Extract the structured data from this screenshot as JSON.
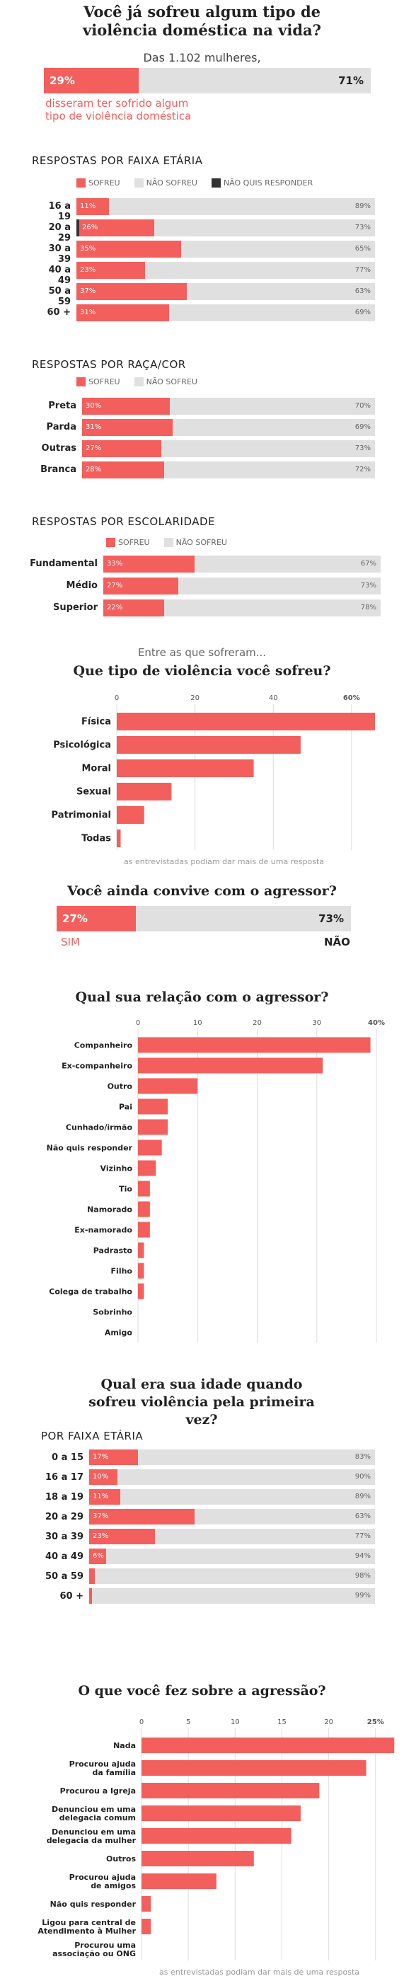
{
  "header": {
    "title_line1": "Você já sofreu algum tipo de",
    "title_line2": "violência doméstica na vida?",
    "base": "Das 1.102 mulheres,",
    "yes_pct": "29%",
    "no_pct": "71%",
    "yes_value": 29,
    "caption_line1": "disseram ter sofrido algum",
    "caption_line2": "tipo de violência doméstica"
  },
  "legend": {
    "sofreu": "SOFREU",
    "nao_sofreu": "NÃO SOFREU",
    "nao_quis": "NÃO QUIS RESPONDER"
  },
  "colors": {
    "red": "#f25f5c",
    "gray": "#e0e0e0",
    "dark": "#333333"
  },
  "chart_data": [
    {
      "type": "bar",
      "title": "RESPOSTAS POR FAIXA ETÁRIA",
      "categories": [
        "16 a 19",
        "20 a 29",
        "30 a 39",
        "40 a 49",
        "50 a 59",
        "60 +"
      ],
      "series": [
        {
          "name": "SOFREU",
          "values": [
            11,
            26,
            35,
            23,
            37,
            31
          ],
          "labels": [
            "11%",
            "26%",
            "35%",
            "23%",
            "37%",
            "31%"
          ]
        },
        {
          "name": "NÃO SOFREU",
          "values": [
            89,
            73,
            65,
            77,
            63,
            69
          ],
          "labels": [
            "89%",
            "73%",
            "65%",
            "77%",
            "63%",
            "69%"
          ]
        },
        {
          "name": "NÃO QUIS RESPONDER",
          "values": [
            0,
            1,
            0,
            0,
            0,
            0
          ]
        }
      ]
    },
    {
      "type": "bar",
      "title": "RESPOSTAS POR RAÇA/COR",
      "categories": [
        "Preta",
        "Parda",
        "Outras",
        "Branca"
      ],
      "series": [
        {
          "name": "SOFREU",
          "values": [
            30,
            31,
            27,
            28
          ],
          "labels": [
            "30%",
            "31%",
            "27%",
            "28%"
          ]
        },
        {
          "name": "NÃO SOFREU",
          "values": [
            70,
            69,
            73,
            72
          ],
          "labels": [
            "70%",
            "69%",
            "73%",
            "72%"
          ]
        }
      ]
    },
    {
      "type": "bar",
      "title": "RESPOSTAS POR ESCOLARIDADE",
      "categories": [
        "Fundamental",
        "Médio",
        "Superior"
      ],
      "series": [
        {
          "name": "SOFREU",
          "values": [
            33,
            27,
            22
          ],
          "labels": [
            "33%",
            "27%",
            "22%"
          ]
        },
        {
          "name": "NÃO SOFREU",
          "values": [
            67,
            73,
            78
          ],
          "labels": [
            "67%",
            "73%",
            "78%"
          ]
        }
      ]
    },
    {
      "type": "bar",
      "title": "Que tipo de violência você sofreu?",
      "categories": [
        "Física",
        "Psicológica",
        "Moral",
        "Sexual",
        "Patrimonial",
        "Todas"
      ],
      "values": [
        66,
        47,
        35,
        14,
        7,
        1
      ],
      "xticks": [
        "0",
        "20",
        "40",
        "60%"
      ],
      "xlim": [
        0,
        66
      ],
      "note": "as entrevistadas podiam dar mais de uma resposta"
    },
    {
      "type": "bar",
      "title": "Você ainda convive com o agressor?",
      "categories": [
        "SIM",
        "NÃO"
      ],
      "values": [
        27,
        73
      ],
      "labels": [
        "27%",
        "73%"
      ]
    },
    {
      "type": "bar",
      "title": "Qual sua relação com o agressor?",
      "categories": [
        "Companheiro",
        "Ex-companheiro",
        "Outro",
        "Pai",
        "Cunhado/irmão",
        "Não quis responder",
        "Vizinho",
        "Tio",
        "Namorado",
        "Ex-namorado",
        "Padrasto",
        "Filho",
        "Colega de trabalho",
        "Sobrinho",
        "Amigo"
      ],
      "values": [
        39,
        31,
        10,
        5,
        5,
        4,
        3,
        2,
        2,
        2,
        1,
        1,
        1,
        0,
        0
      ],
      "xticks": [
        "0",
        "10",
        "20",
        "30",
        "40%"
      ],
      "xlim": [
        0,
        40
      ],
      "note": "as entrevistadas podiam dar mais de uma resposta"
    },
    {
      "type": "bar",
      "title": "Qual era sua idade quando sofreu violência pela primeira vez?",
      "subtitle": "POR FAIXA ETÁRIA",
      "categories": [
        "0 a 15",
        "16 a 17",
        "18 a 19",
        "20 a 29",
        "30 a 39",
        "40 a 49",
        "50 a 59",
        "60 +"
      ],
      "series": [
        {
          "name": "SOFREU",
          "values": [
            17,
            10,
            11,
            37,
            23,
            6,
            2,
            1
          ],
          "labels": [
            "17%",
            "10%",
            "11%",
            "37%",
            "23%",
            "6%",
            "",
            ""
          ]
        },
        {
          "name": "NÃO SOFREU",
          "values": [
            83,
            90,
            89,
            63,
            77,
            94,
            98,
            99
          ],
          "labels": [
            "83%",
            "90%",
            "89%",
            "63%",
            "77%",
            "94%",
            "98%",
            "99%"
          ]
        }
      ]
    },
    {
      "type": "bar",
      "title": "O que você fez sobre a agressão?",
      "categories": [
        "Nada",
        "Procurou ajuda da família",
        "Procurou a Igreja",
        "Denunciou em uma delegacia comum",
        "Denunciou em uma delegacia da mulher",
        "Outros",
        "Procurou ajuda de amigos",
        "Não quis responder",
        "Ligou para central de Atendimento à Mulher",
        "Procurou uma associação ou ONG"
      ],
      "values": [
        27,
        24,
        19,
        17,
        16,
        12,
        8,
        1,
        1,
        0
      ],
      "xticks": [
        "0",
        "5",
        "10",
        "15",
        "20",
        "25%"
      ],
      "xlim": [
        0,
        26
      ],
      "note": "as entrevistadas podiam dar mais de uma resposta"
    }
  ],
  "intro_sofreram": "Entre as que sofreram..."
}
